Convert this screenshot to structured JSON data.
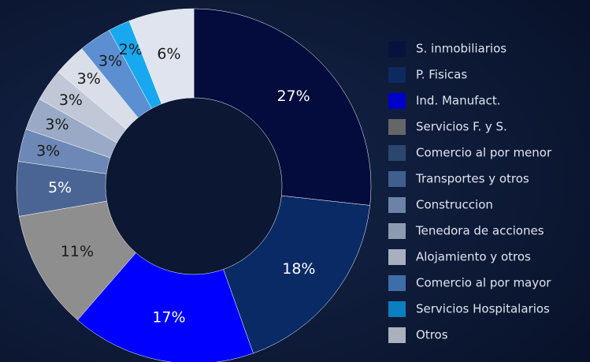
{
  "chart_data": {
    "type": "donut",
    "categories": [
      "S. inmobiliarios",
      "P. Fisicas",
      "Ind. Manufact.",
      "Servicios F. y S.",
      "Comercio al por menor",
      "Transportes y otros",
      "Construccion",
      "Tenedora de acciones",
      "Alojamiento y otros",
      "Comercio al por mayor",
      "Servicios Hospitalarios",
      "Otros"
    ],
    "values": [
      27,
      18,
      17,
      11,
      5,
      3,
      3,
      3,
      3,
      3,
      2,
      6
    ],
    "value_labels": [
      "27%",
      "18%",
      "17%",
      "11%",
      "5%",
      "3%",
      "3%",
      "3%",
      "3%",
      "3%",
      "2%",
      "6%"
    ],
    "colors": [
      "#030c3c",
      "#0a2a66",
      "#0000ff",
      "#8e8e8e",
      "#4a6494",
      "#6d88b6",
      "#9aaac6",
      "#c0c8d8",
      "#d9dee8",
      "#5b8fd2",
      "#18a8f0",
      "#e0e4ee"
    ],
    "legend_colors": [
      "#08123e",
      "#0c2a5e",
      "#0000cc",
      "#666666",
      "#2c4670",
      "#3f5f8f",
      "#6c82a6",
      "#8c9bb0",
      "#a8b0bf",
      "#3e6ea8",
      "#0b7fc0",
      "#aab0bc"
    ]
  }
}
